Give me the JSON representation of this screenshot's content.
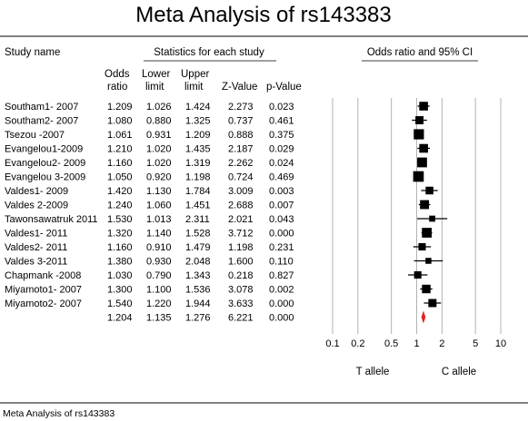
{
  "title": "Meta Analysis of rs143383",
  "footer": "Meta Analysis of rs143383",
  "headers": {
    "study_name": "Study name",
    "stats_group": "Statistics for each study",
    "plot_group": "Odds ratio and 95% CI",
    "col_or": [
      "Odds",
      "ratio"
    ],
    "col_lower": [
      "Lower",
      "limit"
    ],
    "col_upper": [
      "Upper",
      "limit"
    ],
    "col_z": "Z-Value",
    "col_p": "p-Value"
  },
  "axis": {
    "scale": "log",
    "range": [
      0.1,
      10
    ],
    "ticks": [
      "0.1",
      "0.2",
      "0.5",
      "1",
      "2",
      "5",
      "10"
    ],
    "left_label": "T allele",
    "right_label": "C allele"
  },
  "colors": {
    "marker": "#000000",
    "summary": "#e8222a",
    "grid": "#b3b3b3"
  },
  "chart_data": {
    "type": "forest",
    "title": "Meta Analysis of rs143383",
    "xscale": "log",
    "xlim": [
      0.1,
      10
    ],
    "studies": [
      {
        "name": "Southam1- 2007",
        "or": "1.209",
        "lower": "1.026",
        "upper": "1.424",
        "z": "2.273",
        "p": "0.023",
        "weight": 0.62
      },
      {
        "name": "Southam2- 2007",
        "or": "1.080",
        "lower": "0.880",
        "upper": "1.325",
        "z": "0.737",
        "p": "0.461",
        "weight": 0.55
      },
      {
        "name": "Tsezou -2007",
        "or": "1.061",
        "lower": "0.931",
        "upper": "1.209",
        "z": "0.888",
        "p": "0.375",
        "weight": 0.8
      },
      {
        "name": "Evangelou1-2009",
        "or": "1.210",
        "lower": "1.020",
        "upper": "1.435",
        "z": "2.187",
        "p": "0.029",
        "weight": 0.62
      },
      {
        "name": "Evangelou2- 2009",
        "or": "1.160",
        "lower": "1.020",
        "upper": "1.319",
        "z": "2.262",
        "p": "0.024",
        "weight": 0.75
      },
      {
        "name": "Evangelou 3-2009",
        "or": "1.050",
        "lower": "0.920",
        "upper": "1.198",
        "z": "0.724",
        "p": "0.469",
        "weight": 0.85
      },
      {
        "name": "Valdes1- 2009",
        "or": "1.420",
        "lower": "1.130",
        "upper": "1.784",
        "z": "3.009",
        "p": "0.003",
        "weight": 0.5
      },
      {
        "name": "Valdes 2-2009",
        "or": "1.240",
        "lower": "1.060",
        "upper": "1.451",
        "z": "2.688",
        "p": "0.007",
        "weight": 0.65
      },
      {
        "name": "Tawonsawatruk 2011",
        "or": "1.530",
        "lower": "1.013",
        "upper": "2.311",
        "z": "2.021",
        "p": "0.043",
        "weight": 0.3
      },
      {
        "name": "Valdes1- 2011",
        "or": "1.320",
        "lower": "1.140",
        "upper": "1.528",
        "z": "3.712",
        "p": "0.000",
        "weight": 0.75
      },
      {
        "name": "Valdes2- 2011",
        "or": "1.160",
        "lower": "0.910",
        "upper": "1.479",
        "z": "1.198",
        "p": "0.231",
        "weight": 0.45
      },
      {
        "name": "Valdes 3-2011",
        "or": "1.380",
        "lower": "0.930",
        "upper": "2.048",
        "z": "1.600",
        "p": "0.110",
        "weight": 0.28
      },
      {
        "name": "Chapmank -2008",
        "or": "1.030",
        "lower": "0.790",
        "upper": "1.343",
        "z": "0.218",
        "p": "0.827",
        "weight": 0.45
      },
      {
        "name": "Miyamoto1- 2007",
        "or": "1.300",
        "lower": "1.100",
        "upper": "1.536",
        "z": "3.078",
        "p": "0.002",
        "weight": 0.6
      },
      {
        "name": "Miyamoto2- 2007",
        "or": "1.540",
        "lower": "1.220",
        "upper": "1.944",
        "z": "3.633",
        "p": "0.000",
        "weight": 0.55
      }
    ],
    "summary": {
      "or": "1.204",
      "lower": "1.135",
      "upper": "1.276",
      "z": "6.221",
      "p": "0.000"
    }
  }
}
